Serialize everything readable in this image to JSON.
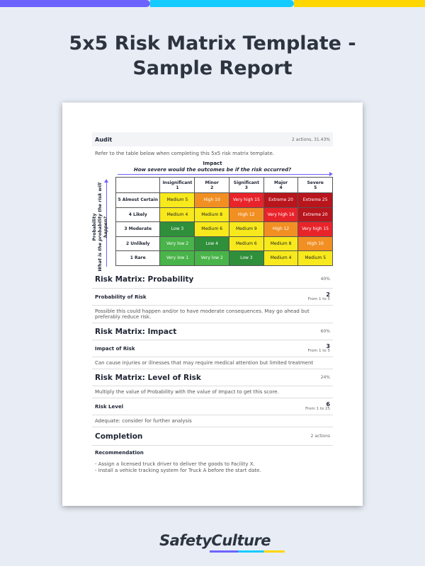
{
  "colors": {
    "purple": "#6c63ff",
    "cyan": "#13cbff",
    "yellow": "#ffd600",
    "very_low": "#49b449",
    "low": "#2f8f3a",
    "medium": "#f7e91c",
    "high": "#f28f23",
    "very_high": "#e8232a",
    "extreme": "#b8151d"
  },
  "title_line1": "5x5 Risk Matrix Template -",
  "title_line2": "Sample Report",
  "audit": {
    "label": "Audit",
    "meta": "2 actions, 31.43%",
    "note": "Refer to the table below when completing this 5x5 risk matrix template."
  },
  "matrix": {
    "impact_title": "Impact",
    "impact_question": "How severe would the outcomes be if the risk occurred?",
    "prob_title": "Probability",
    "prob_question": "What is the probability the risk will happen?",
    "columns": [
      [
        "Insignificant",
        "1"
      ],
      [
        "Minor",
        "2"
      ],
      [
        "Significant",
        "3"
      ],
      [
        "Major",
        "4"
      ],
      [
        "Severe",
        "5"
      ]
    ],
    "rows": [
      {
        "label": "5 Almost Certain",
        "cells": [
          [
            "Medium 5",
            "medium"
          ],
          [
            "High 10",
            "high"
          ],
          [
            "Very high 15",
            "very_high"
          ],
          [
            "Extreme 20",
            "extreme"
          ],
          [
            "Extreme 25",
            "extreme"
          ]
        ]
      },
      {
        "label": "4 Likely",
        "cells": [
          [
            "Medium 4",
            "medium"
          ],
          [
            "Medium 8",
            "medium"
          ],
          [
            "High 12",
            "high"
          ],
          [
            "Very high 16",
            "very_high"
          ],
          [
            "Extreme 20",
            "extreme"
          ]
        ]
      },
      {
        "label": "3 Moderate",
        "cells": [
          [
            "Low 3",
            "low"
          ],
          [
            "Medium 6",
            "medium"
          ],
          [
            "Medium 9",
            "medium"
          ],
          [
            "High 12",
            "high"
          ],
          [
            "Very high 15",
            "very_high"
          ]
        ]
      },
      {
        "label": "2 Unlikely",
        "cells": [
          [
            "Very low 2",
            "very_low"
          ],
          [
            "Low 4",
            "low"
          ],
          [
            "Medium 6",
            "medium"
          ],
          [
            "Medium 8",
            "medium"
          ],
          [
            "High 10",
            "high"
          ]
        ]
      },
      {
        "label": "1 Rare",
        "cells": [
          [
            "Very low 1",
            "very_low"
          ],
          [
            "Very low 2",
            "very_low"
          ],
          [
            "Low 3",
            "low"
          ],
          [
            "Medium 4",
            "medium"
          ],
          [
            "Medium 5",
            "medium"
          ]
        ]
      }
    ]
  },
  "probability": {
    "title": "Risk Matrix: Probability",
    "pct": "40%",
    "q": "Probability of Risk",
    "value": "2",
    "range": "From 1 to 5",
    "desc": "Possible this could happen and/or to have moderate consequences. May go ahead but preferably reduce risk."
  },
  "impact": {
    "title": "Risk Matrix: Impact",
    "pct": "60%",
    "q": "Impact of Risk",
    "value": "3",
    "range": "From 1 to 5",
    "desc": "Can cause injuries or illnesses that may require medical attention but limited treatment"
  },
  "level": {
    "title": "Risk Matrix: Level of Risk",
    "pct": "24%",
    "note": "Multiply the value of Probability with the value of Impact to get this score.",
    "q": "Risk Level",
    "value": "6",
    "range": "From 1 to 25",
    "desc": "Adequate: consider for further analysis"
  },
  "completion": {
    "title": "Completion",
    "meta": "2 actions",
    "q": "Recommendation",
    "lines": [
      "- Assign a licensed truck driver to deliver the goods to Facility X.",
      "- Install a vehicle tracking system for Truck A before the start date."
    ]
  },
  "logo": "SafetyCulture"
}
